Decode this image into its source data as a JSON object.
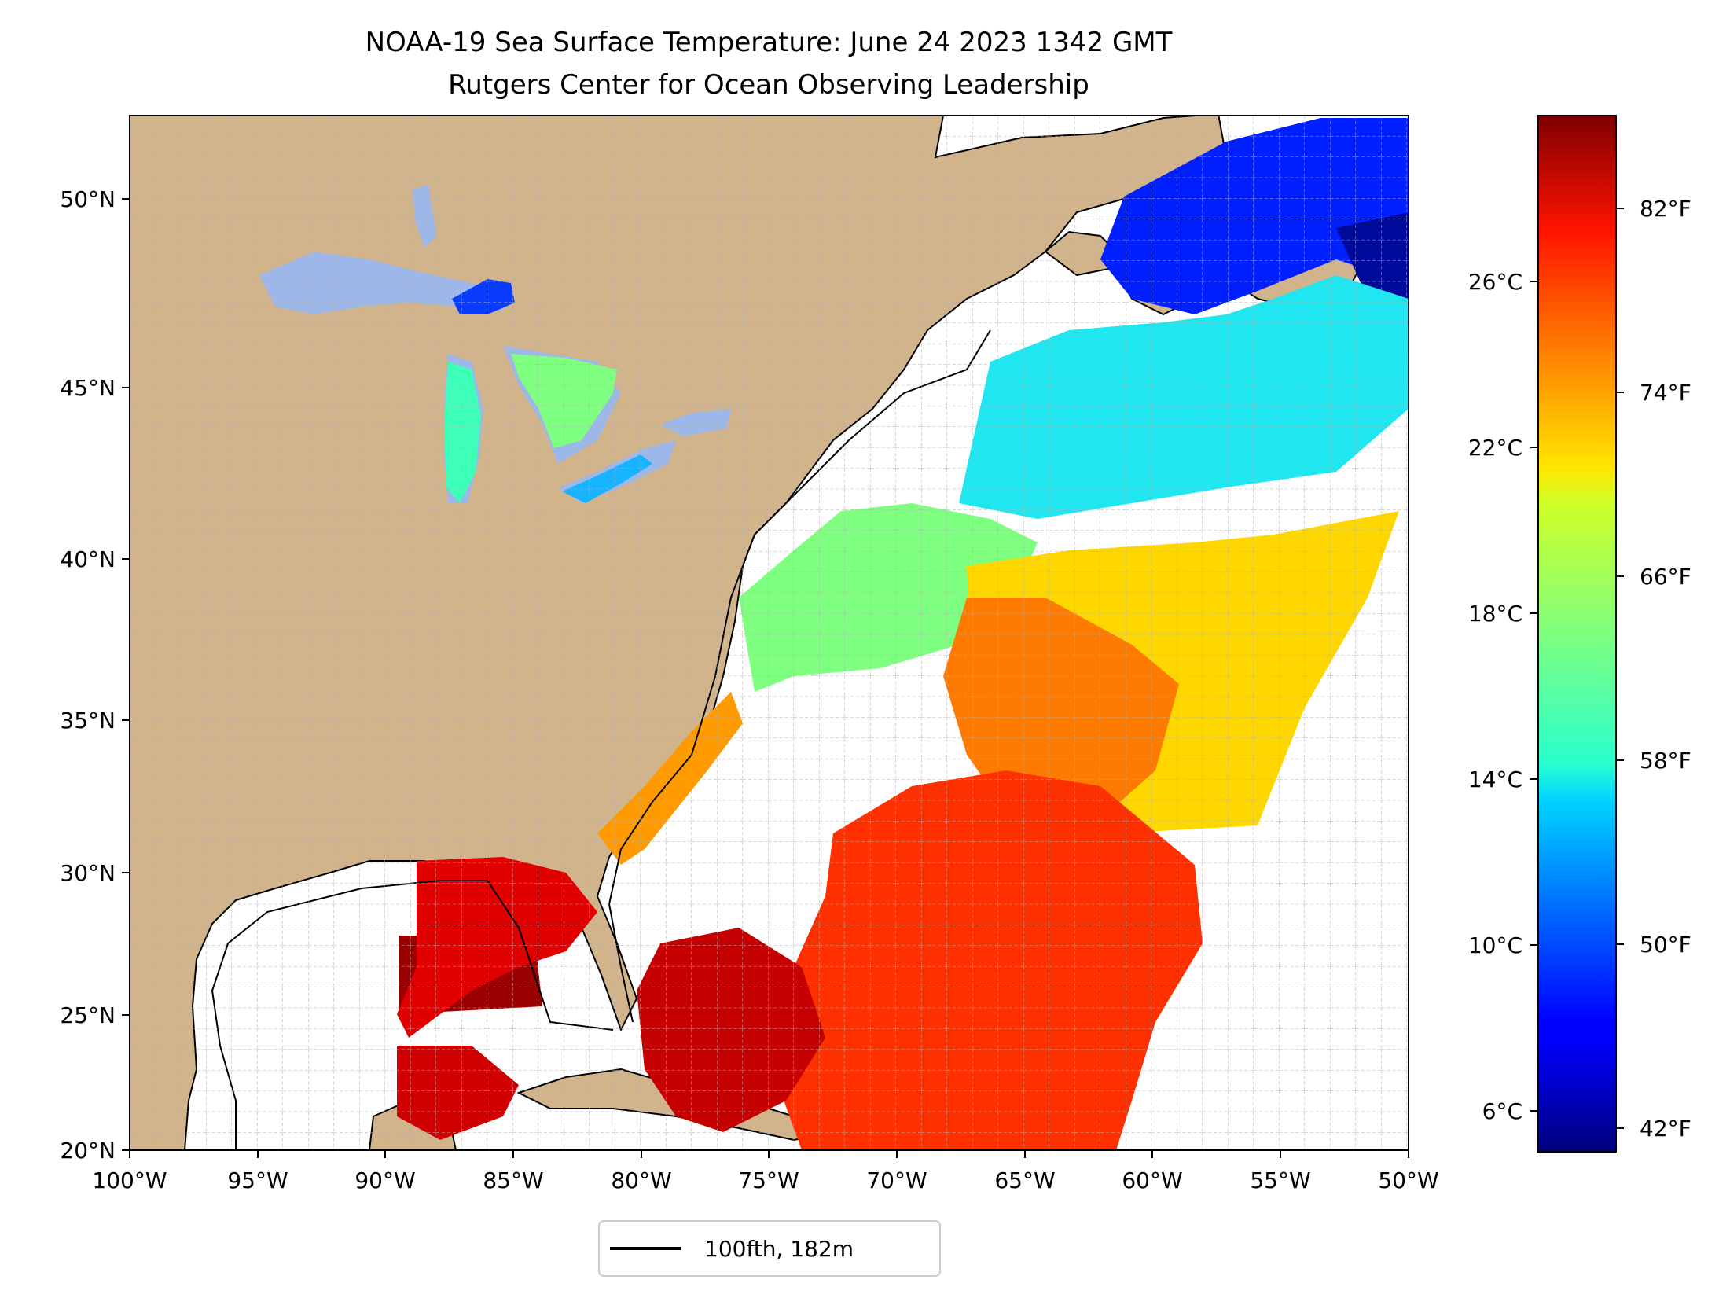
{
  "title": {
    "line1": "NOAA-19 Sea Surface Temperature: June 24 2023 1342 GMT",
    "line2": "Rutgers Center for Ocean Observing Leadership"
  },
  "map": {
    "lon_range": [
      -100,
      -50
    ],
    "lat_range": [
      20,
      52.2
    ],
    "lon_ticks": [
      "100°W",
      "95°W",
      "90°W",
      "85°W",
      "80°W",
      "75°W",
      "70°W",
      "65°W",
      "60°W",
      "55°W",
      "50°W"
    ],
    "lat_ticks": [
      "20°N",
      "25°N",
      "30°N",
      "35°N",
      "40°N",
      "45°N",
      "50°N"
    ],
    "land_color": "#d2b48c",
    "lake_color": "#9db8e8",
    "no_data_color": "#ffffff",
    "gridlines": true
  },
  "colorbar": {
    "colormap": "jet",
    "celsius_ticks": [
      "6°C",
      "10°C",
      "14°C",
      "18°C",
      "22°C",
      "26°C"
    ],
    "fahrenheit_ticks": [
      "42°F",
      "50°F",
      "58°F",
      "66°F",
      "74°F",
      "82°F"
    ],
    "celsius_range": [
      5.5,
      30.5
    ]
  },
  "legend": {
    "label": "100fth, 182m",
    "placement": "bottom-center"
  }
}
